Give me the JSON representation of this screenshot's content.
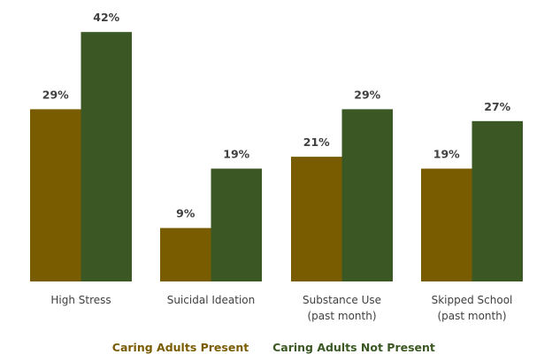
{
  "chart_data": {
    "type": "bar",
    "title": "",
    "xlabel": "",
    "ylabel": "",
    "ylim": [
      0,
      42
    ],
    "grid": false,
    "legend_placement": "bottom",
    "categories": [
      [
        "High Stress"
      ],
      [
        "Suicidal Ideation"
      ],
      [
        "Substance Use",
        "(past month)"
      ],
      [
        "Skipped School",
        "(past month)"
      ]
    ],
    "series": [
      {
        "name": "Caring Adults Present",
        "color": "#7a5c00",
        "values": [
          29,
          9,
          21,
          19
        ],
        "labels": [
          "29%",
          "9%",
          "21%",
          "19%"
        ]
      },
      {
        "name": "Caring Adults Not Present",
        "color": "#3a5724",
        "values": [
          42,
          19,
          29,
          27
        ],
        "labels": [
          "42%",
          "19%",
          "29%",
          "27%"
        ]
      }
    ]
  }
}
